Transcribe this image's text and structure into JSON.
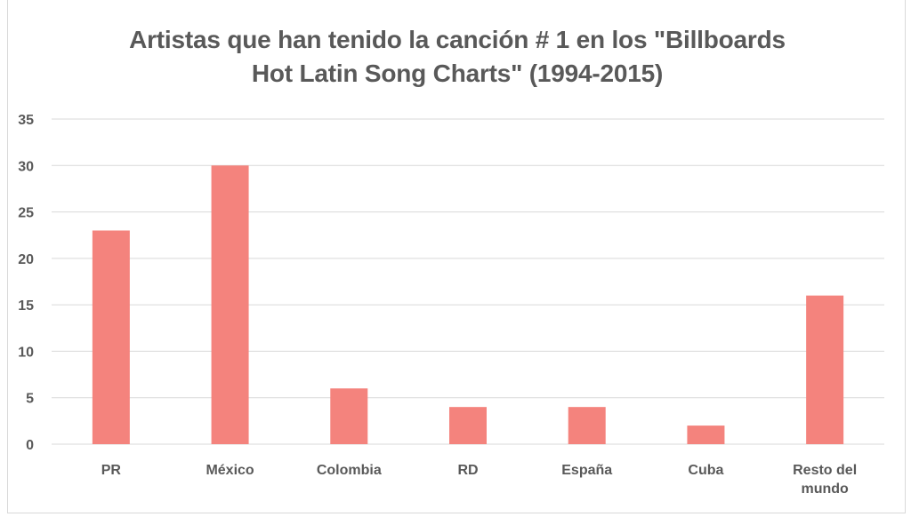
{
  "chart_data": {
    "type": "bar",
    "title_lines": [
      "Artistas que han tenido la canción # 1 en los \"Billboards",
      "Hot Latin Song Charts\" (1994-2015)"
    ],
    "categories": [
      [
        "PR"
      ],
      [
        "México"
      ],
      [
        "Colombia"
      ],
      [
        "RD"
      ],
      [
        "España"
      ],
      [
        "Cuba"
      ],
      [
        "Resto del",
        "mundo"
      ]
    ],
    "values": [
      23,
      30,
      6,
      4,
      4,
      2,
      16
    ],
    "ylim": [
      0,
      35
    ],
    "yticks": [
      0,
      5,
      10,
      15,
      20,
      25,
      30,
      35
    ],
    "grid": true,
    "legend": "none",
    "bar_color": "#f4837d",
    "grid_color": "#d9d9d9",
    "text_color": "#595959"
  }
}
